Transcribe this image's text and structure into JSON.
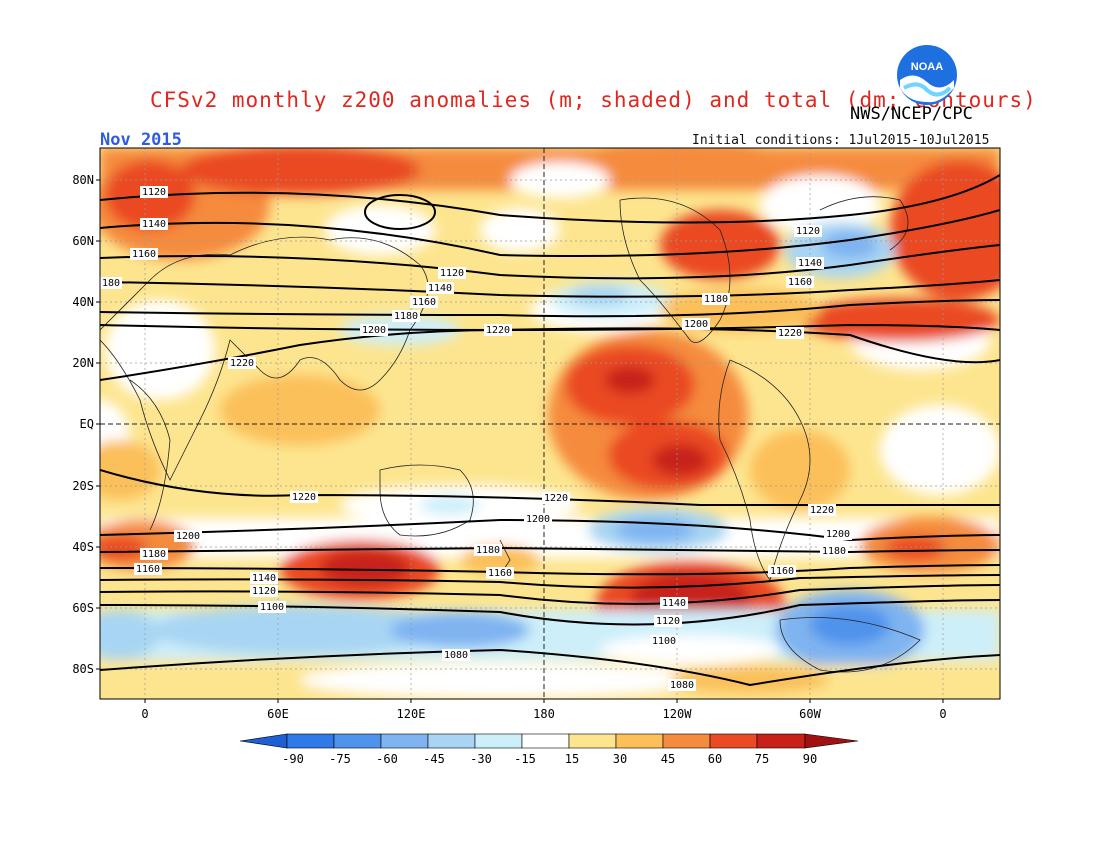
{
  "header": {
    "title": "CFSv2 monthly z200 anomalies (m; shaded) and total (dm; contours)",
    "organization": "NWS/NCEP/CPC",
    "month": "Nov 2015",
    "initial_conditions": "Initial conditions: 1Jul2015-10Jul2015"
  },
  "logo": {
    "text": "NOAA",
    "icon": "noaa-logo-icon"
  },
  "axes": {
    "y_labels": [
      "80N",
      "60N",
      "40N",
      "20N",
      "EQ",
      "20S",
      "40S",
      "60S",
      "80S"
    ],
    "x_labels": [
      "0",
      "60E",
      "120E",
      "180",
      "120W",
      "60W",
      "0"
    ]
  },
  "contour_labels": [
    "1120",
    "1140",
    "1160",
    "180",
    "1120",
    "1140",
    "1160",
    "1180",
    "1200",
    "1220",
    "1220",
    "1180",
    "1200",
    "1220",
    "1120",
    "1140",
    "1160",
    "1220",
    "1220",
    "1200",
    "1200",
    "1180",
    "1160",
    "1220",
    "1200",
    "1180",
    "1160",
    "1140",
    "1120",
    "1100",
    "1180",
    "1160",
    "1140",
    "1120",
    "1100",
    "1080",
    "1080",
    "1200",
    "1180",
    "1160"
  ],
  "colorbar": {
    "labels": [
      "-90",
      "-75",
      "-60",
      "-45",
      "-30",
      "-15",
      "15",
      "30",
      "45",
      "60",
      "75",
      "90"
    ],
    "colors": [
      "#1f5fd6",
      "#2f7ae6",
      "#4f93ec",
      "#7fb4f1",
      "#a8d5f3",
      "#cdeffa",
      "#ffffff",
      "#fde58f",
      "#fbc05a",
      "#f58b3c",
      "#ea4a24",
      "#c8211a",
      "#a01212"
    ]
  }
}
